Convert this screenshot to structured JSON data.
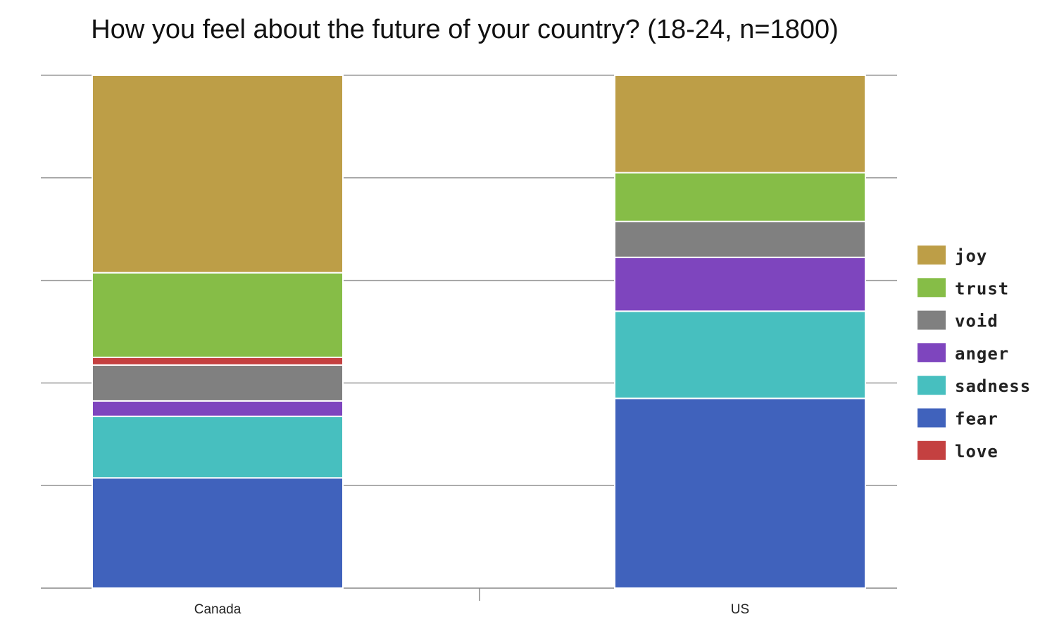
{
  "chart_data": {
    "type": "bar",
    "stacked": true,
    "title": "How you feel about the future of your country? (18-24, n=1800)",
    "xlabel": "",
    "ylabel": "",
    "ylim": [
      0,
      100
    ],
    "grid": true,
    "legend_position": "right",
    "categories": [
      "Canada",
      "US"
    ],
    "series": [
      {
        "name": "fear",
        "color": "#4062BC",
        "values": [
          21.5,
          37
        ]
      },
      {
        "name": "sadness",
        "color": "#47BFBF",
        "values": [
          12,
          17
        ]
      },
      {
        "name": "anger",
        "color": "#7E45BE",
        "values": [
          3,
          10.5
        ]
      },
      {
        "name": "void",
        "color": "#808080",
        "values": [
          7,
          7
        ]
      },
      {
        "name": "love",
        "color": "#C44040",
        "values": [
          1.5,
          0
        ]
      },
      {
        "name": "trust",
        "color": "#86BD47",
        "values": [
          16.5,
          9.5
        ]
      },
      {
        "name": "joy",
        "color": "#BD9E47",
        "values": [
          38.5,
          19
        ]
      }
    ],
    "legend_order": [
      "joy",
      "trust",
      "void",
      "anger",
      "sadness",
      "fear",
      "love"
    ]
  }
}
